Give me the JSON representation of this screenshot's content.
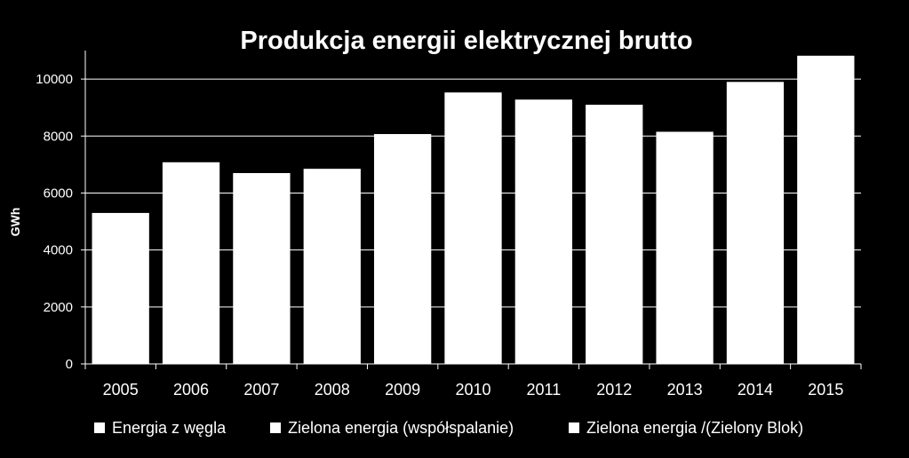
{
  "chart_data": {
    "type": "bar",
    "title": "Produkcja energii elektrycznej brutto",
    "xlabel": "",
    "ylabel": "GWh",
    "ylim": [
      0,
      11000
    ],
    "yticks": [
      0,
      2000,
      4000,
      6000,
      8000,
      10000
    ],
    "grid": true,
    "legend_position": "bottom",
    "categories": [
      "2005",
      "2006",
      "2007",
      "2008",
      "2009",
      "2010",
      "2011",
      "2012",
      "2013",
      "2014",
      "2015"
    ],
    "series": [
      {
        "name": "Energia z węgla",
        "values": [
          5300,
          7080,
          6700,
          6850,
          8070,
          9530,
          9280,
          9100,
          8150,
          9900,
          10820
        ]
      },
      {
        "name": "Zielona energia (współspalanie)",
        "values": [
          0,
          0,
          0,
          0,
          0,
          0,
          0,
          0,
          0,
          0,
          0
        ]
      },
      {
        "name": "Zielona energia /(Zielony Blok)",
        "values": [
          0,
          0,
          0,
          0,
          0,
          0,
          0,
          0,
          0,
          0,
          0
        ]
      }
    ],
    "colors": {
      "background": "#000000",
      "bars": "#ffffff",
      "text": "#ffffff",
      "grid": "#ffffff"
    }
  }
}
